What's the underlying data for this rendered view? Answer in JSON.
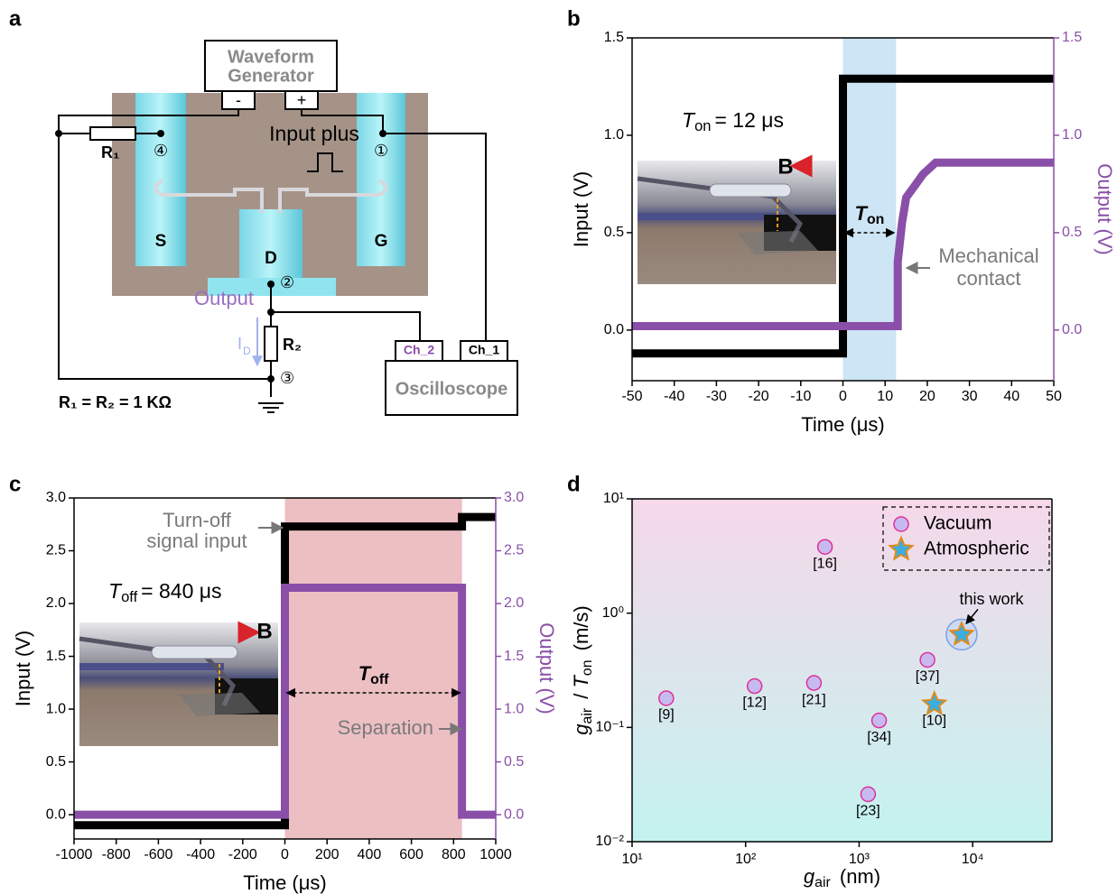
{
  "panel_labels": [
    "a",
    "b",
    "c",
    "d"
  ],
  "diagram": {
    "generator": [
      "Waveform",
      "Generator"
    ],
    "minus": "-",
    "plus": "+",
    "r1": "R₁",
    "node4": "④",
    "input": "Input plus",
    "node1": "①",
    "source": "S",
    "drain": "D",
    "gate": "G",
    "node2": "②",
    "output": "Output",
    "current": {
      "symbol": "I",
      "sub": "D"
    },
    "r2": "R₂",
    "node3": "③",
    "ch2": "Ch_2",
    "ch1": "Ch_1",
    "scope": "Oscilloscope",
    "equation": "R₁ = R₂ = 1 KΩ"
  },
  "chart_data": [
    {
      "type": "line",
      "xlabel": "Time (μs)",
      "ylabel": "Input (V)",
      "y2label": "Output (V)",
      "xlim": [
        -50,
        50
      ],
      "xticks": [
        -50,
        -40,
        -30,
        -20,
        -10,
        0,
        10,
        20,
        30,
        40,
        50
      ],
      "ylim": [
        -0.26,
        1.5
      ],
      "yticks": [
        {
          "value": 0,
          "label": "0.0"
        },
        0.5,
        {
          "value": 1,
          "label": "1.0"
        },
        1.5
      ],
      "y2lim": [
        -0.26,
        1.5
      ],
      "y2ticks": [
        {
          "value": 0,
          "label": "0.0"
        },
        0.5,
        {
          "value": 1,
          "label": "1.0"
        },
        1.5
      ],
      "shaded_region": [
        0,
        12.6
      ],
      "shade_color": "#cde5f5",
      "series": [
        {
          "color": "#000000",
          "x": [
            -50,
            0,
            0,
            50
          ],
          "values": [
            -0.12,
            -0.12,
            1.29,
            1.29
          ]
        },
        {
          "color": "#8a4fa8",
          "axis": "y2",
          "x": [
            -50,
            13,
            13,
            14,
            15,
            17,
            19,
            22,
            50
          ],
          "values": [
            0.02,
            0.02,
            0.35,
            0.55,
            0.68,
            0.74,
            0.8,
            0.86,
            0.86
          ]
        }
      ],
      "annotations": {
        "t_label": {
          "symbol": "T",
          "sub": "on",
          "text": "= 12 μs"
        },
        "span_label": {
          "symbol": "T",
          "sub": "on"
        },
        "field": "B",
        "note": [
          "Mechanical",
          "contact"
        ]
      }
    },
    {
      "type": "line",
      "xlabel": "Time (μs)",
      "ylabel": "Input (V)",
      "y2label": "Output (V)",
      "xlim": [
        -1000,
        1000
      ],
      "xticks": [
        -1000,
        -800,
        -600,
        -400,
        -200,
        0,
        200,
        400,
        600,
        800,
        1000
      ],
      "ylim": [
        -0.23,
        3.0
      ],
      "yticks": [
        {
          "value": 0,
          "label": "0.0"
        },
        0.5,
        {
          "value": 1,
          "label": "1.0"
        },
        1.5,
        {
          "value": 2,
          "label": "2.0"
        },
        2.5,
        {
          "value": 3,
          "label": "3.0"
        }
      ],
      "y2lim": [
        -0.23,
        3.0
      ],
      "y2ticks": [
        {
          "value": 0,
          "label": "0.0"
        },
        0.5,
        {
          "value": 1,
          "label": "1.0"
        },
        1.5,
        {
          "value": 2,
          "label": "2.0"
        },
        2.5,
        {
          "value": 3,
          "label": "3.0"
        }
      ],
      "shaded_region": [
        0,
        840
      ],
      "shade_color": "#ecbfc3",
      "series": [
        {
          "color": "#000000",
          "x": [
            -1000,
            0,
            0,
            840,
            840,
            1000
          ],
          "values": [
            -0.1,
            -0.1,
            2.73,
            2.73,
            2.82,
            2.82
          ]
        },
        {
          "color": "#8a4fa8",
          "axis": "y2",
          "x": [
            -1000,
            0,
            0,
            840,
            840,
            1000
          ],
          "values": [
            0.0,
            0.0,
            2.15,
            2.15,
            0.0,
            0.0
          ]
        }
      ],
      "annotations": {
        "t_label": {
          "symbol": "T",
          "sub": "off",
          "text": "= 840 μs"
        },
        "span_label": {
          "symbol": "T",
          "sub": "off"
        },
        "field": "B",
        "note": [
          "Turn-off",
          "signal input"
        ],
        "note2": "Separation"
      }
    },
    {
      "type": "scatter",
      "log_x": true,
      "log_y": true,
      "legend": "top-right",
      "xlabel": [
        {
          "text": "g",
          "italic": true
        },
        {
          "text": "air",
          "sub": true
        },
        {
          "text": " (nm)"
        }
      ],
      "ylabel": [
        {
          "text": "g",
          "italic": true
        },
        {
          "text": "air",
          "sub": true
        },
        {
          "text": " / "
        },
        {
          "text": "T",
          "italic": true
        },
        {
          "text": "on",
          "sub": true
        },
        {
          "text": " (m/s)"
        }
      ],
      "xlim": [
        10,
        50000
      ],
      "xticks": [
        {
          "value": 10,
          "label": "10¹"
        },
        {
          "value": 100,
          "label": "10²"
        },
        {
          "value": 1000,
          "label": "10³"
        },
        {
          "value": 10000,
          "label": "10⁴"
        }
      ],
      "ylim": [
        0.01,
        10
      ],
      "yticks": [
        {
          "value": 0.01,
          "label": "10⁻²"
        },
        {
          "value": 0.1,
          "label": "10⁻¹"
        },
        {
          "value": 1,
          "label": "10⁰"
        },
        {
          "value": 10,
          "label": "10¹"
        }
      ],
      "series": [
        {
          "name": "Vacuum",
          "marker": "circle",
          "color": "#c7baf0",
          "edge_color": "#e0309a",
          "x": [
            20,
            120,
            400,
            500,
            1500,
            1200,
            4000
          ],
          "values": [
            0.18,
            0.23,
            0.245,
            3.8,
            0.115,
            0.026,
            0.39
          ],
          "labels": [
            "[9]",
            "[12]",
            "[21]",
            "[16]",
            "[34]",
            "[23]",
            "[37]"
          ]
        },
        {
          "name": "Atmospheric",
          "marker": "star",
          "color": "#3aaee0",
          "edge_color": "#e08a1a",
          "x": [
            4600,
            8000
          ],
          "values": [
            0.16,
            0.65
          ],
          "labels": [
            "[10]",
            null
          ]
        }
      ],
      "annotation": {
        "text": "this work",
        "series": 1,
        "point": 1
      }
    }
  ]
}
